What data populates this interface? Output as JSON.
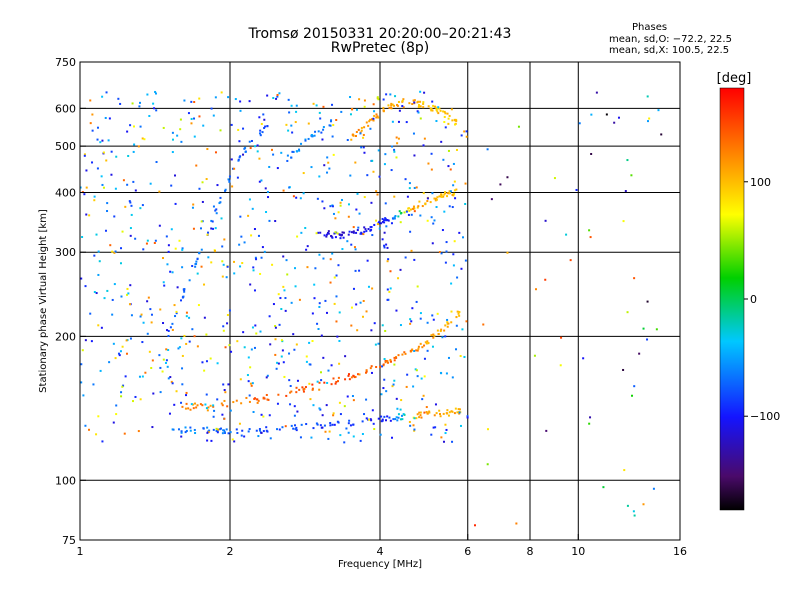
{
  "header": {
    "title": "Tromsø 20150331 20:20:00–20:21:43",
    "subtitle": "RwPretec (8p)"
  },
  "stats": {
    "heading": "Phases",
    "line_o": "mean, sd,O: −72.2, 22.5",
    "line_x": "mean, sd,X: 100.5, 22.5"
  },
  "colorbar": {
    "label": "[deg]",
    "ticks": [
      {
        "value": 100,
        "label": "100"
      },
      {
        "value": 0,
        "label": "0"
      },
      {
        "value": -100,
        "label": "−100"
      }
    ],
    "range": [
      -180,
      180
    ]
  },
  "chart_data": {
    "type": "scatter",
    "title": "Tromsø 20150331 20:20:00–20:21:43",
    "subtitle": "RwPretec (8p)",
    "xlabel": "Frequency [MHz]",
    "ylabel": "Stationary phase Virtual Height [km]",
    "xscale": "log",
    "yscale": "log",
    "xlim": [
      1,
      16
    ],
    "ylim": [
      75,
      750
    ],
    "x_ticks": [
      1,
      2,
      4,
      6,
      8,
      10,
      16
    ],
    "x_tick_labels": [
      "1",
      "2",
      "4",
      "6",
      "8",
      "10",
      "16"
    ],
    "y_ticks": [
      75,
      100,
      200,
      300,
      400,
      500,
      600,
      750
    ],
    "y_tick_labels": [
      "75",
      "100",
      "200",
      "300",
      "400",
      "500",
      "600",
      "750"
    ],
    "grid_x": [
      2,
      4,
      6,
      8,
      10
    ],
    "grid_y": [
      100,
      200,
      300,
      400,
      500,
      600
    ],
    "color_scale": "phase in degrees (rainbow, black = −180, red = +180)",
    "traces": [
      {
        "f": [
          1.5,
          1.8,
          2.0,
          2.4,
          3.0,
          3.6,
          4.2,
          4.8,
          5.4,
          5.8
        ],
        "h": [
          128,
          127,
          126,
          128,
          130,
          132,
          135,
          137,
          138,
          140
        ],
        "phase": [
          -60,
          -65,
          -72,
          -78,
          -85,
          -92,
          -96,
          115,
          110,
          105
        ]
      },
      {
        "f": [
          1.6,
          1.9,
          2.3,
          2.8,
          3.3,
          3.8,
          4.3,
          4.8,
          5.3,
          5.8
        ],
        "h": [
          142,
          144,
          148,
          155,
          162,
          170,
          180,
          190,
          205,
          225
        ],
        "phase": [
          120,
          125,
          140,
          145,
          150,
          140,
          130,
          120,
          105,
          100
        ]
      },
      {
        "f": [
          3.0,
          3.3,
          3.6,
          3.9,
          4.2,
          4.6,
          5.0,
          5.4,
          5.7
        ],
        "h": [
          330,
          325,
          330,
          340,
          355,
          370,
          385,
          395,
          400
        ],
        "phase": [
          -110,
          -112,
          -108,
          -100,
          -95,
          110,
          105,
          100,
          98
        ]
      },
      {
        "f": [
          3.5,
          3.8,
          4.1,
          4.5,
          4.9,
          5.3,
          5.7
        ],
        "h": [
          520,
          560,
          600,
          620,
          610,
          590,
          560
        ],
        "phase": [
          120,
          115,
          110,
          105,
          100,
          98,
          95
        ]
      },
      {
        "f": [
          1.5,
          1.7,
          1.9,
          2.1,
          2.4
        ],
        "h": [
          200,
          280,
          380,
          480,
          560
        ],
        "phase": [
          -75,
          -70,
          -68,
          -72,
          -80
        ]
      },
      {
        "f": [
          2.6,
          2.9,
          3.2
        ],
        "h": [
          470,
          520,
          560
        ],
        "phase": [
          -65,
          -60,
          -70
        ]
      }
    ],
    "scattered_points": {
      "f_range": [
        1.0,
        6.0
      ],
      "h_range": [
        120,
        650
      ],
      "phase_mean": -72.2,
      "phase_sd": 22.5
    }
  }
}
